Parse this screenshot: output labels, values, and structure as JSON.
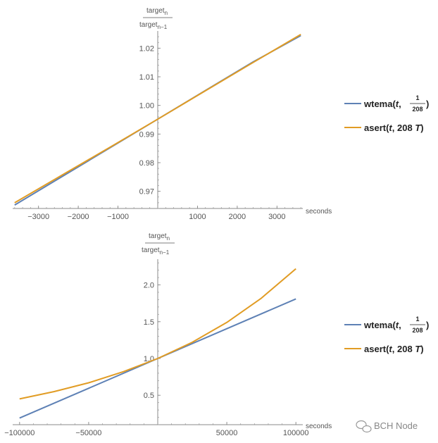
{
  "chart_data": [
    {
      "type": "line",
      "title": "",
      "xlabel": "seconds",
      "ylabel": {
        "numerator": "target",
        "num_sub": "n",
        "denominator": "target",
        "den_sub": "n−1"
      },
      "xlim": [
        -3650,
        3650
      ],
      "ylim": [
        0.964,
        1.026
      ],
      "x_ticks": [
        -3000,
        -2000,
        -1000,
        1000,
        2000,
        3000
      ],
      "x_tick_labels": [
        "−3000",
        "−2000",
        "−1000",
        "1000",
        "2000",
        "3000"
      ],
      "y_ticks": [
        0.97,
        0.98,
        0.99,
        1.0,
        1.01,
        1.02
      ],
      "y_tick_labels": [
        "0.97",
        "0.98",
        "0.99",
        "1.00",
        "1.01",
        "1.02"
      ],
      "series": [
        {
          "name": "wtema",
          "color": "#5E81B5",
          "x": [
            -3600,
            -2400,
            -1200,
            0,
            1200,
            2400,
            3600
          ],
          "y": [
            0.9652,
            0.9752,
            0.9852,
            0.9952,
            1.0052,
            1.0152,
            1.0244
          ]
        },
        {
          "name": "asert",
          "color": "#E19C24",
          "x": [
            -3600,
            -2400,
            -1200,
            0,
            1200,
            2400,
            3600
          ],
          "y": [
            0.966,
            0.9757,
            0.9854,
            0.9952,
            1.0051,
            1.015,
            1.0248
          ]
        }
      ]
    },
    {
      "type": "line",
      "title": "",
      "xlabel": "seconds",
      "ylabel": {
        "numerator": "target",
        "num_sub": "n",
        "denominator": "target",
        "den_sub": "n−1"
      },
      "xlim": [
        -105000,
        105000
      ],
      "ylim": [
        0.1,
        2.35
      ],
      "x_ticks": [
        -100000,
        -50000,
        50000,
        100000
      ],
      "x_tick_labels": [
        "−100000",
        "−50000",
        "50000",
        "100000"
      ],
      "y_ticks": [
        0.5,
        1.0,
        1.5,
        2.0
      ],
      "y_tick_labels": [
        "0.5",
        "1.0",
        "1.5",
        "2.0"
      ],
      "series": [
        {
          "name": "wtema",
          "color": "#5E81B5",
          "x": [
            -100000,
            -50000,
            0,
            50000,
            100000
          ],
          "y": [
            0.19,
            0.595,
            1.0,
            1.405,
            1.81
          ]
        },
        {
          "name": "asert",
          "color": "#E19C24",
          "x": [
            -100000,
            -75000,
            -50000,
            -25000,
            0,
            25000,
            50000,
            75000,
            100000
          ],
          "y": [
            0.45,
            0.55,
            0.67,
            0.82,
            1.0,
            1.22,
            1.49,
            1.82,
            2.22
          ]
        }
      ]
    }
  ],
  "legend": [
    {
      "name_prefix": "wtema(",
      "var": "t",
      "sep": ",",
      "frac_num": "1",
      "frac_den": "208",
      "suffix": ")",
      "color": "#5E81B5"
    },
    {
      "name_prefix": "asert(",
      "var": "t",
      "mid": ", 208 ",
      "unit": "T",
      "suffix": ")",
      "color": "#E19C24"
    }
  ],
  "watermark": "BCH Node"
}
